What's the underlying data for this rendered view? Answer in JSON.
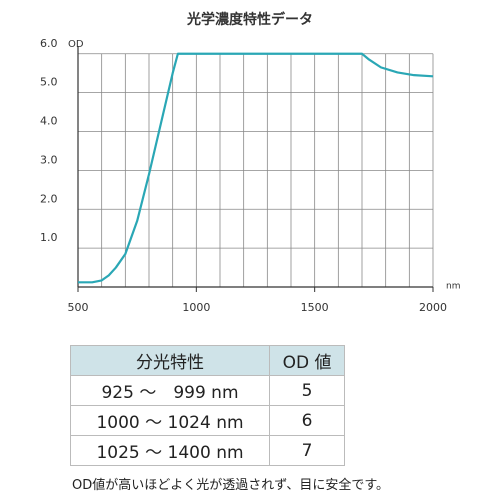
{
  "chart_data": {
    "type": "line",
    "title": "光学濃度特性データ",
    "ylabel": "OD",
    "xlabel": "nm",
    "x": [
      500,
      560,
      600,
      630,
      660,
      700,
      750,
      800,
      850,
      900,
      922,
      1700,
      1730,
      1780,
      1850,
      1920,
      2000
    ],
    "values": [
      0.12,
      0.12,
      0.17,
      0.3,
      0.5,
      0.85,
      1.7,
      2.9,
      4.2,
      5.5,
      6.0,
      6.0,
      5.85,
      5.65,
      5.52,
      5.45,
      5.42
    ],
    "color": "#2aa7b5",
    "xlim": [
      500,
      2000
    ],
    "ylim": [
      0,
      6.2
    ],
    "xticks": [
      500,
      1000,
      1500,
      2000
    ],
    "xgrid": [
      500,
      600,
      700,
      800,
      900,
      1000,
      1100,
      1200,
      1300,
      1400,
      1500,
      1600,
      1700,
      1800,
      1900,
      2000
    ],
    "yticks": [
      {
        "value": 1,
        "label": "1.0"
      },
      {
        "value": 2,
        "label": "2.0"
      },
      {
        "value": 3,
        "label": "3.0"
      },
      {
        "value": 4,
        "label": "4.0"
      },
      {
        "value": 5,
        "label": "5.0"
      },
      {
        "value": 6,
        "label": "6.0"
      }
    ],
    "grid": true
  },
  "table": {
    "header": [
      "分光特性",
      "OD 値"
    ],
    "rows": [
      [
        "925 ～　999 nm",
        5
      ],
      [
        "1000 ～ 1024 nm",
        6
      ],
      [
        "1025 ～ 1400 nm",
        7
      ]
    ]
  },
  "note": "OD値が高いほどよく光が透過されず、目に安全です。"
}
